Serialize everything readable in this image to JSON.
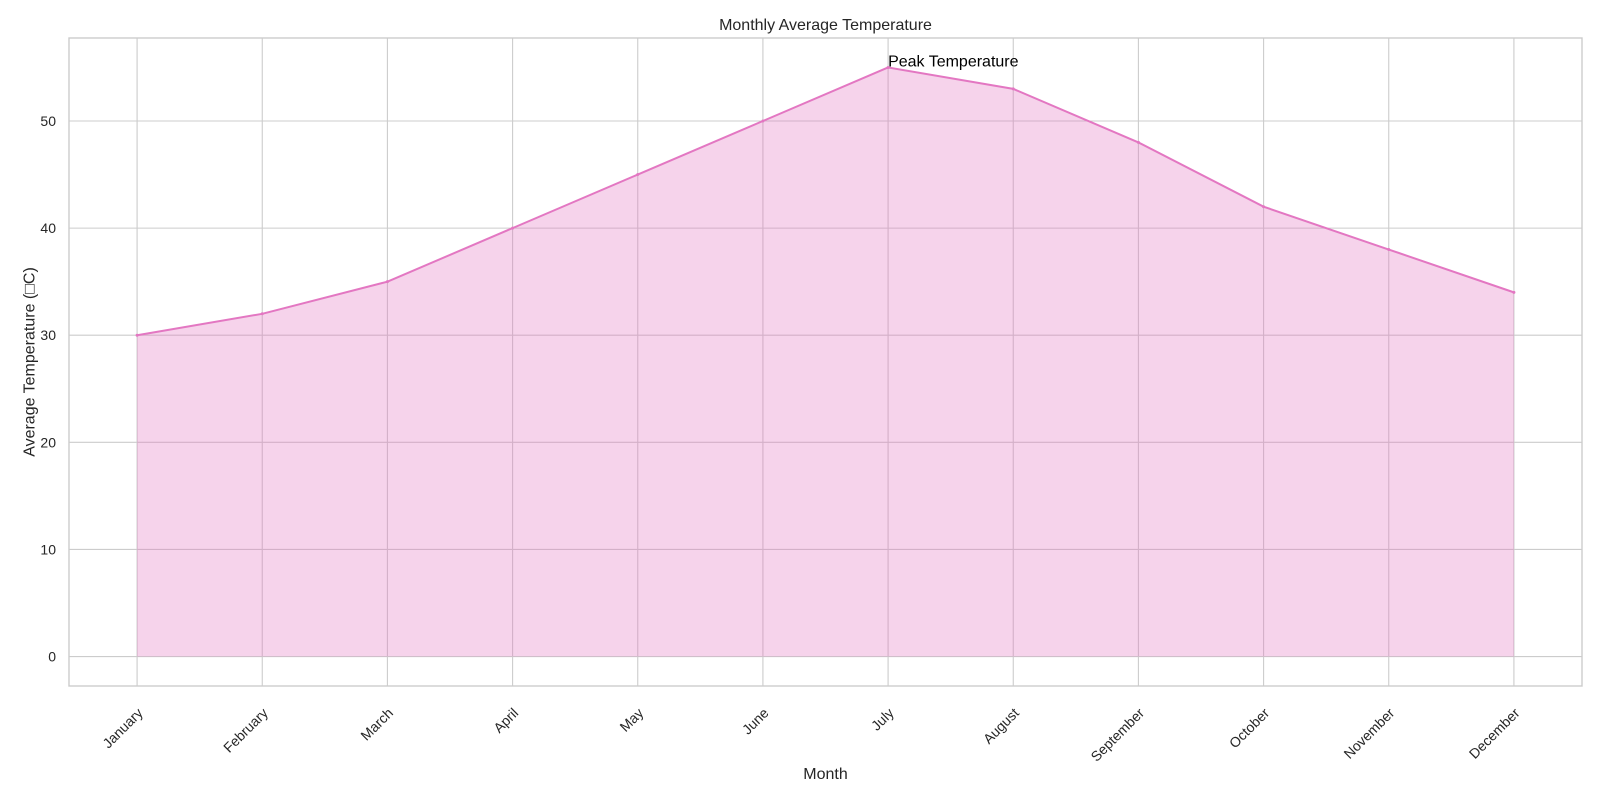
{
  "chart_data": {
    "type": "area",
    "title": "Monthly Average Temperature",
    "xlabel": "Month",
    "ylabel": "Average Temperature (□C)",
    "categories": [
      "January",
      "February",
      "March",
      "April",
      "May",
      "June",
      "July",
      "August",
      "September",
      "October",
      "November",
      "December"
    ],
    "values": [
      30,
      32,
      35,
      40,
      45,
      50,
      55,
      53,
      48,
      42,
      38,
      34
    ],
    "ylim": [
      -2.75,
      57.75
    ],
    "yticks": [
      0,
      10,
      20,
      30,
      40,
      50
    ],
    "grid": true,
    "legend": "none",
    "annotations": [
      {
        "text": "Peak Temperature",
        "x": "July",
        "y": 55
      }
    ],
    "colors": {
      "line": "#e377c2",
      "fill": "#e377c2",
      "fill_opacity": 0.32,
      "grid": "#cccccc",
      "spine": "#cccccc"
    }
  }
}
